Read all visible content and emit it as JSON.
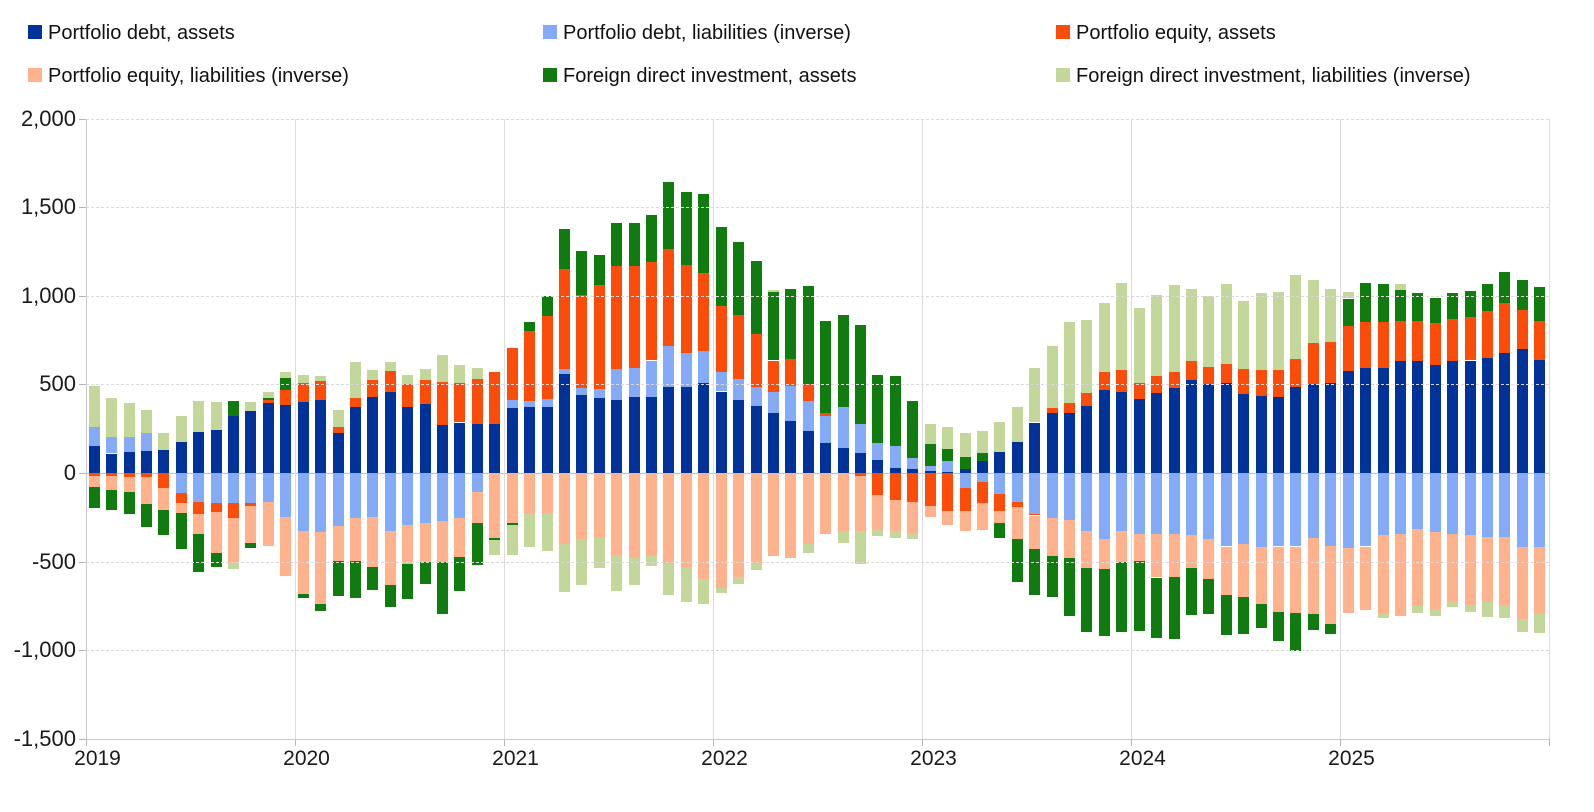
{
  "chart_data": {
    "type": "bar",
    "stacked": true,
    "title": "",
    "xlabel": "",
    "ylabel": "",
    "grid": true,
    "legend_position": "top",
    "ylim": [
      -1500,
      2000
    ],
    "ytick_step": 500,
    "y_axis": {
      "tick_labels": [
        "2,000",
        "1,500",
        "1,000",
        "500",
        "0",
        "-500",
        "-1,000",
        "-1,500"
      ],
      "tick_values": [
        2000,
        1500,
        1000,
        500,
        0,
        -500,
        -1000,
        -1500
      ]
    },
    "x_axis": {
      "year_labels": [
        "2019",
        "2020",
        "2021",
        "2022",
        "2023",
        "2024",
        "2025"
      ]
    },
    "months": [
      "2019-01",
      "2019-02",
      "2019-03",
      "2019-04",
      "2019-05",
      "2019-06",
      "2019-07",
      "2019-08",
      "2019-09",
      "2019-10",
      "2019-11",
      "2019-12",
      "2020-01",
      "2020-02",
      "2020-03",
      "2020-04",
      "2020-05",
      "2020-06",
      "2020-07",
      "2020-08",
      "2020-09",
      "2020-10",
      "2020-11",
      "2020-12",
      "2021-01",
      "2021-02",
      "2021-03",
      "2021-04",
      "2021-05",
      "2021-06",
      "2021-07",
      "2021-08",
      "2021-09",
      "2021-10",
      "2021-11",
      "2021-12",
      "2022-01",
      "2022-02",
      "2022-03",
      "2022-04",
      "2022-05",
      "2022-06",
      "2022-07",
      "2022-08",
      "2022-09",
      "2022-10",
      "2022-11",
      "2022-12",
      "2023-01",
      "2023-02",
      "2023-03",
      "2023-04",
      "2023-05",
      "2023-06",
      "2023-07",
      "2023-08",
      "2023-09",
      "2023-10",
      "2023-11",
      "2023-12",
      "2024-01",
      "2024-02",
      "2024-03",
      "2024-04",
      "2024-05",
      "2024-06",
      "2024-07",
      "2024-08",
      "2024-09",
      "2024-10",
      "2024-11",
      "2024-12",
      "2025-01",
      "2025-02",
      "2025-03",
      "2025-04",
      "2025-05",
      "2025-06",
      "2025-07",
      "2025-08",
      "2025-09",
      "2025-10",
      "2025-11",
      "2025-12"
    ],
    "series": [
      {
        "name": "Portfolio debt, assets",
        "color": "#003299",
        "values": [
          150,
          110,
          120,
          125,
          130,
          175,
          230,
          240,
          320,
          350,
          395,
          385,
          400,
          410,
          225,
          375,
          430,
          455,
          375,
          390,
          270,
          285,
          275,
          275,
          365,
          370,
          375,
          560,
          440,
          425,
          410,
          430,
          430,
          485,
          485,
          510,
          460,
          410,
          380,
          340,
          295,
          235,
          170,
          140,
          115,
          75,
          30,
          20,
          10,
          5,
          25,
          65,
          120,
          175,
          285,
          340,
          340,
          380,
          470,
          455,
          415,
          450,
          480,
          525,
          500,
          510,
          445,
          435,
          430,
          485,
          500,
          510,
          575,
          595,
          595,
          630,
          630,
          610,
          630,
          635,
          650,
          680,
          700,
          640
        ]
      },
      {
        "name": "Portfolio debt, liabilities (inverse)",
        "color": "#84AAF8",
        "values": [
          110,
          95,
          85,
          100,
          0,
          -115,
          -165,
          -170,
          -170,
          -170,
          -165,
          -250,
          -325,
          -335,
          -300,
          -255,
          -250,
          -325,
          -295,
          -280,
          -270,
          -255,
          -105,
          0,
          45,
          35,
          40,
          25,
          40,
          50,
          175,
          165,
          205,
          230,
          195,
          180,
          110,
          120,
          105,
          115,
          195,
          170,
          150,
          235,
          160,
          95,
          125,
          65,
          30,
          60,
          -85,
          -50,
          -120,
          -165,
          -230,
          -255,
          -265,
          -325,
          -370,
          -325,
          -345,
          -345,
          -345,
          -350,
          -375,
          -415,
          -400,
          -420,
          -415,
          -415,
          -365,
          -410,
          -425,
          -415,
          -350,
          -345,
          -315,
          -335,
          -345,
          -350,
          -360,
          -360,
          -420,
          -420
        ]
      },
      {
        "name": "Portfolio equity, assets",
        "color": "#FB4D09",
        "values": [
          -15,
          -15,
          -20,
          -20,
          -85,
          -55,
          -65,
          -50,
          -85,
          -15,
          15,
          85,
          110,
          110,
          35,
          50,
          95,
          120,
          125,
          135,
          245,
          225,
          255,
          295,
          295,
          395,
          470,
          565,
          525,
          585,
          585,
          575,
          555,
          550,
          495,
          440,
          375,
          360,
          300,
          180,
          155,
          95,
          20,
          0,
          -15,
          -125,
          -150,
          -165,
          -185,
          -215,
          -130,
          -120,
          -95,
          -25,
          -10,
          25,
          55,
          70,
          100,
          125,
          95,
          95,
          90,
          105,
          100,
          105,
          140,
          145,
          150,
          160,
          235,
          230,
          255,
          260,
          255,
          230,
          230,
          235,
          240,
          245,
          265,
          280,
          220,
          220
        ]
      },
      {
        "name": "Portfolio equity, liabilities (inverse)",
        "color": "#FFB28C",
        "values": [
          -65,
          -80,
          -90,
          -155,
          -125,
          -55,
          -115,
          -230,
          -255,
          -210,
          -250,
          -330,
          -360,
          -405,
          -195,
          -240,
          -280,
          -305,
          -220,
          -220,
          -235,
          -220,
          -175,
          -365,
          -280,
          -230,
          -230,
          -400,
          -375,
          -360,
          -465,
          -480,
          -470,
          -515,
          -530,
          -600,
          -650,
          -585,
          -510,
          -470,
          -480,
          -400,
          -345,
          -335,
          -315,
          -195,
          -175,
          -175,
          -65,
          -80,
          -110,
          -150,
          -70,
          -185,
          -190,
          -215,
          -215,
          -210,
          -170,
          -175,
          -150,
          -245,
          -240,
          -185,
          -225,
          -275,
          -300,
          -320,
          -370,
          -375,
          -430,
          -440,
          -365,
          -360,
          -445,
          -465,
          -435,
          -440,
          -385,
          -395,
          -370,
          -385,
          -405,
          -375
        ]
      },
      {
        "name": "Foreign direct investment, assets",
        "color": "#107C10",
        "values": [
          -120,
          -115,
          -120,
          -130,
          -140,
          -205,
          -215,
          -80,
          85,
          -30,
          15,
          65,
          -20,
          -40,
          -200,
          -210,
          -130,
          -125,
          -195,
          -125,
          -290,
          -190,
          -240,
          -15,
          -15,
          55,
          115,
          225,
          250,
          170,
          240,
          240,
          265,
          375,
          410,
          445,
          445,
          415,
          410,
          385,
          395,
          555,
          520,
          515,
          560,
          385,
          390,
          320,
          125,
          70,
          65,
          50,
          -80,
          -240,
          -260,
          -230,
          -325,
          -360,
          -380,
          -395,
          -395,
          -340,
          -350,
          -265,
          -195,
          -225,
          -210,
          -135,
          -165,
          -215,
          -90,
          -60,
          155,
          220,
          215,
          175,
          155,
          145,
          145,
          145,
          150,
          175,
          170,
          190
        ]
      },
      {
        "name": "Foreign direct investment, liabilities (inverse)",
        "color": "#C3D79B",
        "values": [
          230,
          220,
          190,
          130,
          95,
          145,
          175,
          160,
          -30,
          50,
          30,
          35,
          45,
          30,
          95,
          200,
          55,
          50,
          55,
          60,
          150,
          100,
          60,
          -85,
          -170,
          -190,
          -210,
          -270,
          -260,
          -175,
          -200,
          -155,
          -55,
          -175,
          -200,
          -140,
          -25,
          -40,
          -35,
          15,
          0,
          -50,
          0,
          -60,
          -185,
          -35,
          -40,
          -30,
          110,
          125,
          135,
          120,
          170,
          200,
          305,
          350,
          460,
          415,
          390,
          495,
          420,
          460,
          490,
          410,
          400,
          450,
          385,
          435,
          440,
          475,
          355,
          300,
          35,
          0,
          -25,
          30,
          -40,
          -30,
          -25,
          -40,
          -85,
          -75,
          -75,
          -110
        ]
      }
    ]
  }
}
